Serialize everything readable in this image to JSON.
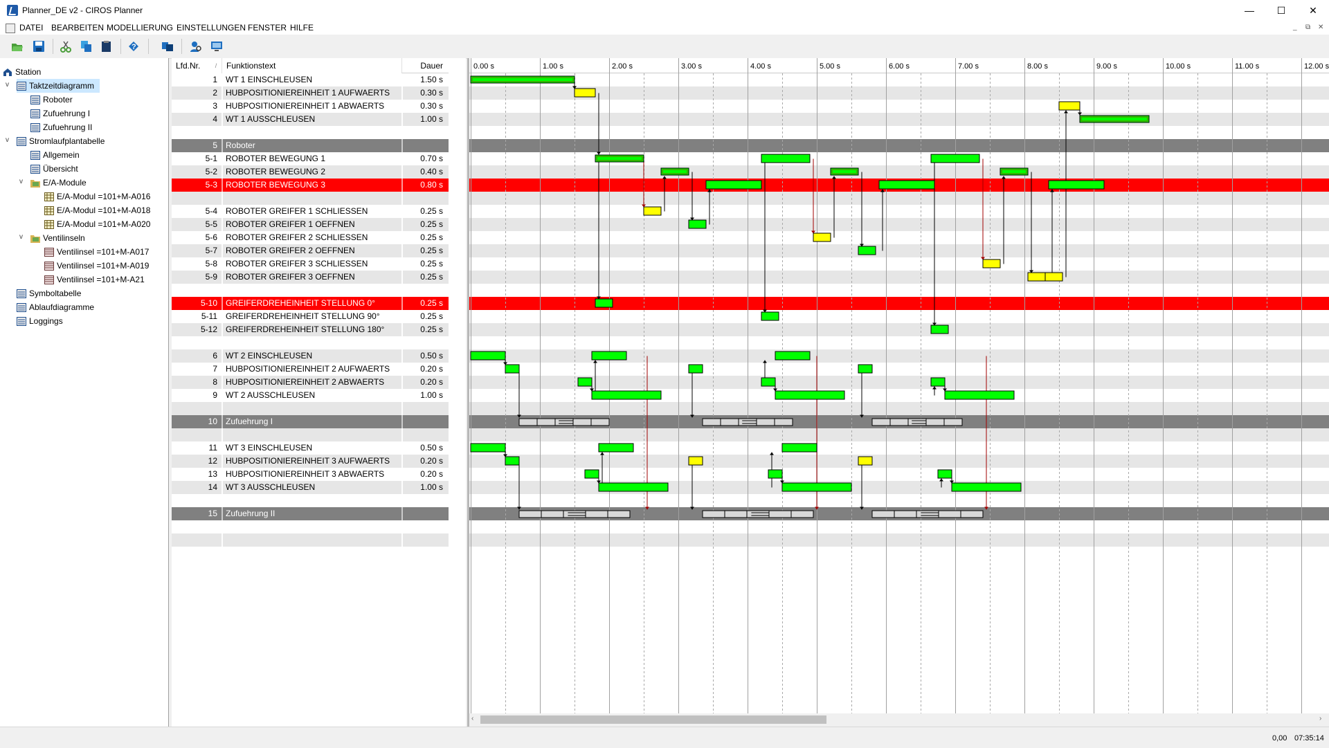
{
  "window": {
    "title": "Planner_DE v2 - CIROS Planner",
    "minimize": "—",
    "maximize": "☐",
    "close": "✕"
  },
  "menu": [
    "DATEI",
    "BEARBEITEN",
    "MODELLIERUNG",
    "EINSTELLUNGEN",
    "FENSTER",
    "HILFE"
  ],
  "mdi_controls": [
    "_",
    "⧉",
    "✕"
  ],
  "toolbar": [
    "open-icon",
    "save-icon",
    "cut-icon",
    "copy-icon",
    "paste-icon",
    "help-icon",
    "module-icon",
    "user-search-icon",
    "screen-icon"
  ],
  "tree": [
    {
      "label": "Station",
      "level": 0,
      "icon": "station-icon",
      "expand": ""
    },
    {
      "label": "Taktzeitdiagramm",
      "level": 1,
      "icon": "diagram-icon",
      "expand": "v",
      "selected": true
    },
    {
      "label": "Roboter",
      "level": 2,
      "icon": "diagram-icon",
      "expand": ""
    },
    {
      "label": "Zufuehrung I",
      "level": 2,
      "icon": "diagram-icon",
      "expand": ""
    },
    {
      "label": "Zufuehrung II",
      "level": 2,
      "icon": "diagram-icon",
      "expand": ""
    },
    {
      "label": "Stromlaufplantabelle",
      "level": 1,
      "icon": "diagram-icon",
      "expand": "v"
    },
    {
      "label": "Allgemein",
      "level": 2,
      "icon": "diagram-icon",
      "expand": ""
    },
    {
      "label": "Übersicht",
      "level": 2,
      "icon": "diagram-icon",
      "expand": ""
    },
    {
      "label": "E/A-Module",
      "level": 2,
      "icon": "folder-icon",
      "expand": "v"
    },
    {
      "label": "E/A-Modul =101+M-A016",
      "level": 3,
      "icon": "module-icon",
      "expand": ""
    },
    {
      "label": "E/A-Modul =101+M-A018",
      "level": 3,
      "icon": "module-icon",
      "expand": ""
    },
    {
      "label": "E/A-Modul =101+M-A020",
      "level": 3,
      "icon": "module-icon",
      "expand": ""
    },
    {
      "label": "Ventilinseln",
      "level": 2,
      "icon": "folder-icon",
      "expand": "v"
    },
    {
      "label": "Ventilinsel =101+M-A017",
      "level": 3,
      "icon": "valve-icon",
      "expand": ""
    },
    {
      "label": "Ventilinsel =101+M-A019",
      "level": 3,
      "icon": "valve-icon",
      "expand": ""
    },
    {
      "label": "Ventilinsel =101+M-A21",
      "level": 3,
      "icon": "valve-icon",
      "expand": ""
    },
    {
      "label": "Symboltabelle",
      "level": 1,
      "icon": "diagram-icon",
      "expand": ""
    },
    {
      "label": "Ablaufdiagramme",
      "level": 1,
      "icon": "diagram-icon",
      "expand": ""
    },
    {
      "label": "Loggings",
      "level": 1,
      "icon": "diagram-icon",
      "expand": ""
    }
  ],
  "table": {
    "headers": {
      "nr": "Lfd.Nr.",
      "sort": "/",
      "text": "Funktionstext",
      "dauer": "Dauer"
    },
    "rows": [
      {
        "nr": "1",
        "text": "WT 1 EINSCHLEUSEN",
        "dauer": "1.50 s",
        "kind": "normal"
      },
      {
        "nr": "2",
        "text": "HUBPOSITIONIEREINHEIT 1 AUFWAERTS",
        "dauer": "0.30 s",
        "kind": "normal"
      },
      {
        "nr": "3",
        "text": "HUBPOSITIONIEREINHEIT 1 ABWAERTS",
        "dauer": "0.30 s",
        "kind": "normal"
      },
      {
        "nr": "4",
        "text": "WT 1 AUSSCHLEUSEN",
        "dauer": "1.00 s",
        "kind": "normal"
      },
      {
        "nr": "",
        "text": "",
        "dauer": "",
        "kind": "empty"
      },
      {
        "nr": "5",
        "text": "Roboter",
        "dauer": "",
        "kind": "group"
      },
      {
        "nr": "5-1",
        "text": "ROBOTER BEWEGUNG 1",
        "dauer": "0.70 s",
        "kind": "normal"
      },
      {
        "nr": "5-2",
        "text": "ROBOTER BEWEGUNG 2",
        "dauer": "0.40 s",
        "kind": "normal"
      },
      {
        "nr": "5-3",
        "text": "ROBOTER BEWEGUNG 3",
        "dauer": "0.80 s",
        "kind": "highlight"
      },
      {
        "nr": "",
        "text": "",
        "dauer": "",
        "kind": "empty"
      },
      {
        "nr": "5-4",
        "text": "ROBOTER GREIFER 1 SCHLIESSEN",
        "dauer": "0.25 s",
        "kind": "normal"
      },
      {
        "nr": "5-5",
        "text": "ROBOTER GREIFER 1 OEFFNEN",
        "dauer": "0.25 s",
        "kind": "normal"
      },
      {
        "nr": "5-6",
        "text": "ROBOTER GREIFER 2 SCHLIESSEN",
        "dauer": "0.25 s",
        "kind": "normal"
      },
      {
        "nr": "5-7",
        "text": "ROBOTER GREIFER 2 OEFFNEN",
        "dauer": "0.25 s",
        "kind": "normal"
      },
      {
        "nr": "5-8",
        "text": "ROBOTER GREIFER 3 SCHLIESSEN",
        "dauer": "0.25 s",
        "kind": "normal"
      },
      {
        "nr": "5-9",
        "text": "ROBOTER GREIFER 3 OEFFNEN",
        "dauer": "0.25 s",
        "kind": "normal"
      },
      {
        "nr": "",
        "text": "",
        "dauer": "",
        "kind": "empty"
      },
      {
        "nr": "5-10",
        "text": "GREIFERDREHEINHEIT STELLUNG 0°",
        "dauer": "0.25 s",
        "kind": "highlight"
      },
      {
        "nr": "5-11",
        "text": "GREIFERDREHEINHEIT STELLUNG 90°",
        "dauer": "0.25 s",
        "kind": "normal"
      },
      {
        "nr": "5-12",
        "text": "GREIFERDREHEINHEIT STELLUNG 180°",
        "dauer": "0.25 s",
        "kind": "normal"
      },
      {
        "nr": "",
        "text": "",
        "dauer": "",
        "kind": "empty"
      },
      {
        "nr": "6",
        "text": "WT 2 EINSCHLEUSEN",
        "dauer": "0.50 s",
        "kind": "normal"
      },
      {
        "nr": "7",
        "text": "HUBPOSITIONIEREINHEIT 2 AUFWAERTS",
        "dauer": "0.20 s",
        "kind": "normal"
      },
      {
        "nr": "8",
        "text": "HUBPOSITIONIEREINHEIT 2 ABWAERTS",
        "dauer": "0.20 s",
        "kind": "normal"
      },
      {
        "nr": "9",
        "text": "WT 2 AUSSCHLEUSEN",
        "dauer": "1.00 s",
        "kind": "normal"
      },
      {
        "nr": "",
        "text": "",
        "dauer": "",
        "kind": "empty"
      },
      {
        "nr": "10",
        "text": "Zufuehrung I",
        "dauer": "",
        "kind": "group"
      },
      {
        "nr": "",
        "text": "",
        "dauer": "",
        "kind": "empty"
      },
      {
        "nr": "11",
        "text": "WT 3 EINSCHLEUSEN",
        "dauer": "0.50 s",
        "kind": "normal"
      },
      {
        "nr": "12",
        "text": "HUBPOSITIONIEREINHEIT 3 AUFWAERTS",
        "dauer": "0.20 s",
        "kind": "normal"
      },
      {
        "nr": "13",
        "text": "HUBPOSITIONIEREINHEIT 3 ABWAERTS",
        "dauer": "0.20 s",
        "kind": "normal"
      },
      {
        "nr": "14",
        "text": "WT 3 AUSSCHLEUSEN",
        "dauer": "1.00 s",
        "kind": "normal"
      },
      {
        "nr": "",
        "text": "",
        "dauer": "",
        "kind": "empty"
      },
      {
        "nr": "15",
        "text": "Zufuehrung II",
        "dauer": "",
        "kind": "group"
      },
      {
        "nr": "",
        "text": "",
        "dauer": "",
        "kind": "empty"
      },
      {
        "nr": "",
        "text": "",
        "dauer": "",
        "kind": "empty"
      }
    ]
  },
  "gantt": {
    "ticks": [
      "0.00 s",
      "1.00 s",
      "2.00 s",
      "3.00 s",
      "4.00 s",
      "5.00 s",
      "6.00 s",
      "7.00 s",
      "8.00 s",
      "9.00 s",
      "10.00 s",
      "11.00 s",
      "12.00 s"
    ],
    "bars": [
      {
        "row": 0,
        "start": 0.0,
        "dur": 1.5,
        "color": "green-outlined"
      },
      {
        "row": 1,
        "start": 1.5,
        "dur": 0.3,
        "color": "yellow"
      },
      {
        "row": 2,
        "start": 8.5,
        "dur": 0.3,
        "color": "yellow"
      },
      {
        "row": 3,
        "start": 8.8,
        "dur": 1.0,
        "color": "green-outlined"
      },
      {
        "row": 6,
        "start": 1.8,
        "dur": 0.7,
        "color": "green-outlined"
      },
      {
        "row": 6,
        "start": 4.2,
        "dur": 0.7,
        "color": "green"
      },
      {
        "row": 6,
        "start": 6.65,
        "dur": 0.7,
        "color": "green"
      },
      {
        "row": 7,
        "start": 2.75,
        "dur": 0.4,
        "color": "green-outlined"
      },
      {
        "row": 7,
        "start": 5.2,
        "dur": 0.4,
        "color": "green-outlined"
      },
      {
        "row": 7,
        "start": 7.65,
        "dur": 0.4,
        "color": "green-outlined"
      },
      {
        "row": 8,
        "start": 3.4,
        "dur": 0.8,
        "color": "green"
      },
      {
        "row": 8,
        "start": 5.9,
        "dur": 0.8,
        "color": "green"
      },
      {
        "row": 8,
        "start": 8.35,
        "dur": 0.8,
        "color": "green"
      },
      {
        "row": 10,
        "start": 2.5,
        "dur": 0.25,
        "color": "yellow"
      },
      {
        "row": 11,
        "start": 3.15,
        "dur": 0.25,
        "color": "green"
      },
      {
        "row": 12,
        "start": 4.95,
        "dur": 0.25,
        "color": "yellow"
      },
      {
        "row": 13,
        "start": 5.6,
        "dur": 0.25,
        "color": "green"
      },
      {
        "row": 14,
        "start": 7.4,
        "dur": 0.25,
        "color": "yellow"
      },
      {
        "row": 15,
        "start": 8.05,
        "dur": 0.25,
        "color": "yellow"
      },
      {
        "row": 15,
        "start": 8.3,
        "dur": 0.25,
        "color": "yellow"
      },
      {
        "row": 17,
        "start": 1.8,
        "dur": 0.25,
        "color": "green"
      },
      {
        "row": 18,
        "start": 4.2,
        "dur": 0.25,
        "color": "green"
      },
      {
        "row": 19,
        "start": 6.65,
        "dur": 0.25,
        "color": "green"
      },
      {
        "row": 21,
        "start": 0.0,
        "dur": 0.5,
        "color": "green"
      },
      {
        "row": 21,
        "start": 1.75,
        "dur": 0.5,
        "color": "green"
      },
      {
        "row": 21,
        "start": 4.4,
        "dur": 0.5,
        "color": "green"
      },
      {
        "row": 22,
        "start": 0.5,
        "dur": 0.2,
        "color": "green"
      },
      {
        "row": 22,
        "start": 3.15,
        "dur": 0.2,
        "color": "green"
      },
      {
        "row": 22,
        "start": 5.6,
        "dur": 0.2,
        "color": "green"
      },
      {
        "row": 23,
        "start": 1.55,
        "dur": 0.2,
        "color": "green"
      },
      {
        "row": 23,
        "start": 4.2,
        "dur": 0.2,
        "color": "green"
      },
      {
        "row": 23,
        "start": 6.65,
        "dur": 0.2,
        "color": "green"
      },
      {
        "row": 24,
        "start": 1.75,
        "dur": 1.0,
        "color": "green"
      },
      {
        "row": 24,
        "start": 4.4,
        "dur": 1.0,
        "color": "green"
      },
      {
        "row": 24,
        "start": 6.85,
        "dur": 1.0,
        "color": "green"
      },
      {
        "row": 28,
        "start": 0.0,
        "dur": 0.5,
        "color": "green"
      },
      {
        "row": 28,
        "start": 1.85,
        "dur": 0.5,
        "color": "green"
      },
      {
        "row": 28,
        "start": 4.5,
        "dur": 0.5,
        "color": "green"
      },
      {
        "row": 29,
        "start": 0.5,
        "dur": 0.2,
        "color": "green"
      },
      {
        "row": 29,
        "start": 3.15,
        "dur": 0.2,
        "color": "yellow"
      },
      {
        "row": 29,
        "start": 5.6,
        "dur": 0.2,
        "color": "yellow"
      },
      {
        "row": 30,
        "start": 1.65,
        "dur": 0.2,
        "color": "green"
      },
      {
        "row": 30,
        "start": 4.3,
        "dur": 0.2,
        "color": "green"
      },
      {
        "row": 30,
        "start": 6.75,
        "dur": 0.2,
        "color": "green"
      },
      {
        "row": 31,
        "start": 1.85,
        "dur": 1.0,
        "color": "green"
      },
      {
        "row": 31,
        "start": 4.5,
        "dur": 1.0,
        "color": "green"
      },
      {
        "row": 31,
        "start": 6.95,
        "dur": 1.0,
        "color": "green"
      }
    ],
    "group_segments": [
      {
        "row": 26,
        "start": 0.7,
        "dur": 1.3
      },
      {
        "row": 26,
        "start": 3.35,
        "dur": 1.3
      },
      {
        "row": 26,
        "start": 5.8,
        "dur": 1.3
      },
      {
        "row": 33,
        "start": 0.7,
        "dur": 1.6
      },
      {
        "row": 33,
        "start": 3.35,
        "dur": 1.6
      },
      {
        "row": 33,
        "start": 5.8,
        "dur": 1.6
      }
    ],
    "dependencies": [
      {
        "x": 1.5,
        "from": 0,
        "to": 1,
        "color": "black"
      },
      {
        "x": 1.85,
        "from": 1,
        "to": 6,
        "color": "black"
      },
      {
        "x": 1.85,
        "from": 6,
        "to": 17,
        "color": "black"
      },
      {
        "x": 2.5,
        "from": 6,
        "to": 10,
        "color": "darkred"
      },
      {
        "x": 2.8,
        "from": 10,
        "to": 7,
        "color": "black"
      },
      {
        "x": 3.2,
        "from": 7,
        "to": 11,
        "color": "black"
      },
      {
        "x": 3.45,
        "from": 11,
        "to": 8,
        "color": "black"
      },
      {
        "x": 4.25,
        "from": 6,
        "to": 18,
        "color": "black"
      },
      {
        "x": 4.95,
        "from": 6,
        "to": 12,
        "color": "darkred"
      },
      {
        "x": 5.25,
        "from": 12,
        "to": 7,
        "color": "black"
      },
      {
        "x": 5.65,
        "from": 7,
        "to": 13,
        "color": "black"
      },
      {
        "x": 5.95,
        "from": 13,
        "to": 8,
        "color": "black"
      },
      {
        "x": 6.7,
        "from": 6,
        "to": 19,
        "color": "black"
      },
      {
        "x": 7.4,
        "from": 6,
        "to": 14,
        "color": "darkred"
      },
      {
        "x": 7.7,
        "from": 14,
        "to": 7,
        "color": "black"
      },
      {
        "x": 8.1,
        "from": 7,
        "to": 15,
        "color": "black"
      },
      {
        "x": 8.4,
        "from": 15,
        "to": 8,
        "color": "black"
      },
      {
        "x": 8.6,
        "from": 15,
        "to": 2,
        "color": "black"
      },
      {
        "x": 8.8,
        "from": 2,
        "to": 3,
        "color": "black"
      },
      {
        "x": 0.5,
        "from": 21,
        "to": 22,
        "color": "black"
      },
      {
        "x": 0.7,
        "from": 22,
        "to": 26,
        "color": "black"
      },
      {
        "x": 1.8,
        "from": 24,
        "to": 21,
        "color": "black"
      },
      {
        "x": 1.75,
        "from": 23,
        "to": 24,
        "color": "black"
      },
      {
        "x": 3.2,
        "from": 22,
        "to": 26,
        "color": "black"
      },
      {
        "x": 4.25,
        "from": 23,
        "to": 21,
        "color": "black"
      },
      {
        "x": 4.4,
        "from": 23,
        "to": 24,
        "color": "black"
      },
      {
        "x": 5.65,
        "from": 22,
        "to": 26,
        "color": "black"
      },
      {
        "x": 6.7,
        "from": 24,
        "to": 23,
        "color": "black"
      },
      {
        "x": 6.85,
        "from": 23,
        "to": 24,
        "color": "black"
      },
      {
        "x": 0.5,
        "from": 28,
        "to": 29,
        "color": "black"
      },
      {
        "x": 0.7,
        "from": 29,
        "to": 33,
        "color": "black"
      },
      {
        "x": 1.9,
        "from": 31,
        "to": 28,
        "color": "black"
      },
      {
        "x": 1.85,
        "from": 30,
        "to": 31,
        "color": "black"
      },
      {
        "x": 3.2,
        "from": 29,
        "to": 33,
        "color": "black"
      },
      {
        "x": 4.35,
        "from": 31,
        "to": 28,
        "color": "black"
      },
      {
        "x": 4.5,
        "from": 30,
        "to": 31,
        "color": "black"
      },
      {
        "x": 5.65,
        "from": 29,
        "to": 33,
        "color": "black"
      },
      {
        "x": 6.8,
        "from": 31,
        "to": 30,
        "color": "black"
      },
      {
        "x": 6.95,
        "from": 30,
        "to": 31,
        "color": "black"
      },
      {
        "x": 2.55,
        "from": 21,
        "to": 33,
        "color": "darkred"
      },
      {
        "x": 5.0,
        "from": 21,
        "to": 33,
        "color": "darkred"
      },
      {
        "x": 7.45,
        "from": 21,
        "to": 33,
        "color": "darkred"
      }
    ]
  },
  "status": {
    "value": "0,00",
    "time": "07:35:14"
  },
  "colors": {
    "selection": "#cce8ff",
    "highlight": "#ff0000",
    "group": "#808080",
    "green": "#00ff00",
    "yellow": "#ffff00",
    "altrow": "#e6e6e6",
    "darkred": "#a00000"
  }
}
